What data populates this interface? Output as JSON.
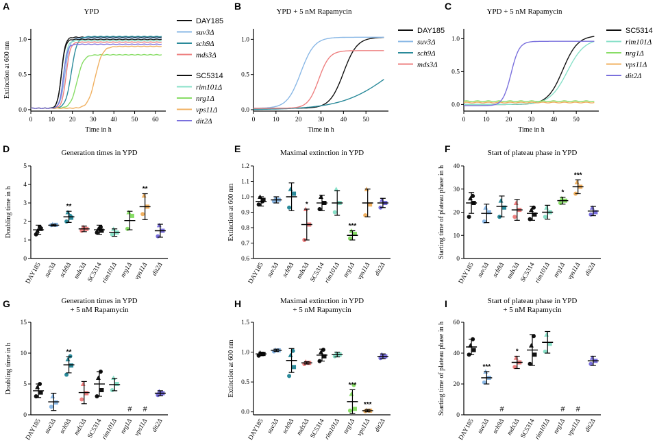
{
  "strains": [
    "DAY185",
    "suv3Δ",
    "sch9Δ",
    "mds3Δ",
    "SC5314",
    "rim101Δ",
    "nrg1Δ",
    "vps11Δ",
    "dit2Δ"
  ],
  "italic_strains": [
    "suv3Δ",
    "sch9Δ",
    "mds3Δ",
    "rim101Δ",
    "nrg1Δ",
    "vps11Δ",
    "dit2Δ"
  ],
  "colors": {
    "DAY185": "#111111",
    "suv3Δ": "#8ab8e6",
    "sch9Δ": "#2a8a9a",
    "mds3Δ": "#ee8080",
    "SC5314": "#111111",
    "rim101Δ": "#88e0c8",
    "nrg1Δ": "#88dd66",
    "vps11Δ": "#f0b060",
    "dit2Δ": "#7a70dd"
  },
  "panels": [
    "A",
    "B",
    "C",
    "D",
    "E",
    "F",
    "G",
    "H",
    "I"
  ],
  "chart_data": [
    {
      "id": "A",
      "type": "line",
      "title": "YPD",
      "xlabel": "Time in h",
      "ylabel": "Extinction at 600 nm",
      "xlim": [
        0,
        65
      ],
      "ylim": [
        -0.02,
        1.15
      ],
      "xticks": [
        0,
        10,
        20,
        30,
        40,
        50,
        60
      ],
      "yticks": [
        0.0,
        0.5,
        1.0
      ],
      "ytick_labels": [
        "0.0",
        "0.5",
        "1.0"
      ],
      "legend_groups": [
        [
          "DAY185",
          "suv3Δ",
          "sch9Δ",
          "mds3Δ"
        ],
        [
          "SC5314",
          "rim101Δ",
          "nrg1Δ",
          "vps11Δ",
          "dit2Δ"
        ]
      ],
      "series": [
        {
          "name": "DAY185",
          "lag": 11,
          "dt": 1.5,
          "plateau": 1.03
        },
        {
          "name": "suv3Δ",
          "lag": 12,
          "dt": 1.8,
          "plateau": 1.02
        },
        {
          "name": "sch9Δ",
          "lag": 14,
          "dt": 2.2,
          "plateau": 1.04
        },
        {
          "name": "mds3Δ",
          "lag": 13,
          "dt": 1.6,
          "plateau": 0.96
        },
        {
          "name": "SC5314",
          "lag": 11,
          "dt": 1.5,
          "plateau": 1.0
        },
        {
          "name": "rim101Δ",
          "lag": 12,
          "dt": 1.5,
          "plateau": 0.98
        },
        {
          "name": "nrg1Δ",
          "lag": 16,
          "dt": 2.5,
          "plateau": 0.78
        },
        {
          "name": "vps11Δ",
          "lag": 24,
          "dt": 2.8,
          "plateau": 0.9
        },
        {
          "name": "dit2Δ",
          "lag": 12,
          "dt": 1.5,
          "plateau": 0.93
        }
      ]
    },
    {
      "id": "B",
      "type": "line",
      "title": "YPD + 5 nM Rapamycin",
      "xlabel": "Time in h",
      "ylabel": "",
      "xlim": [
        0,
        60
      ],
      "ylim": [
        -0.02,
        1.15
      ],
      "xticks": [
        0,
        10,
        20,
        30,
        40,
        50
      ],
      "yticks": [
        0.0,
        0.5,
        1.0
      ],
      "ytick_labels": [
        "0.0",
        "0.5",
        "1.0"
      ],
      "legend_groups": [
        [
          "DAY185",
          "suv3Δ",
          "sch9Δ",
          "mds3Δ"
        ]
      ],
      "series": [
        {
          "name": "DAY185",
          "mid": 40,
          "k": 0.33,
          "plateau": 1.03,
          "base": 0.02
        },
        {
          "name": "suv3Δ",
          "mid": 21,
          "k": 0.33,
          "plateau": 1.03,
          "base": 0.02
        },
        {
          "name": "sch9Δ",
          "mid": 62,
          "k": 0.09,
          "plateau": 1.05,
          "base": 0.0
        },
        {
          "name": "mds3Δ",
          "mid": 29,
          "k": 0.42,
          "plateau": 0.84,
          "base": 0.02
        }
      ]
    },
    {
      "id": "C",
      "type": "line",
      "title": "YPD + 5 nM Rapamycin",
      "xlabel": "Time in h",
      "ylabel": "",
      "xlim": [
        0,
        60
      ],
      "ylim": [
        -0.1,
        1.15
      ],
      "xticks": [
        0,
        10,
        20,
        30,
        40,
        50
      ],
      "yticks": [
        0.0,
        0.5,
        1.0
      ],
      "ytick_labels": [
        "0.0",
        "0.5",
        "1.0"
      ],
      "legend_groups": [
        [
          "SC5314",
          "rim101Δ",
          "nrg1Δ",
          "vps11Δ",
          "dit2Δ"
        ]
      ],
      "series": [
        {
          "name": "SC5314",
          "mid": 44,
          "k": 0.3,
          "plateau": 1.05,
          "base": 0.0
        },
        {
          "name": "rim101Δ",
          "mid": 46,
          "k": 0.26,
          "plateau": 1.0,
          "base": 0.0
        },
        {
          "name": "nrg1Δ",
          "flat": 0.05
        },
        {
          "name": "vps11Δ",
          "flat": 0.03
        },
        {
          "name": "dit2Δ",
          "mid": 21,
          "k": 0.55,
          "plateau": 0.96,
          "base": -0.02
        }
      ]
    },
    {
      "id": "D",
      "type": "scatter",
      "title": "Generation times in YPD",
      "ylabel": "Doubling time in h",
      "ylim": [
        0,
        5
      ],
      "yticks": [
        0,
        1,
        2,
        3,
        4,
        5
      ],
      "ytick_labels": [
        "0",
        "1",
        "2",
        "3",
        "4",
        "5"
      ],
      "groups": [
        {
          "name": "DAY185",
          "values": [
            1.3,
            1.6,
            1.5,
            1.7
          ],
          "mean": 1.55,
          "sd": 0.25,
          "sig": ""
        },
        {
          "name": "suv3Δ",
          "values": [
            1.8,
            1.82,
            1.85
          ],
          "mean": 1.8,
          "sd": 0.05,
          "sig": ""
        },
        {
          "name": "sch9Δ",
          "values": [
            2.0,
            2.2,
            2.5,
            2.3
          ],
          "mean": 2.25,
          "sd": 0.3,
          "sig": "**"
        },
        {
          "name": "mds3Δ",
          "values": [
            1.5,
            1.6,
            1.7
          ],
          "mean": 1.6,
          "sd": 0.15,
          "sig": ""
        },
        {
          "name": "SC5314",
          "values": [
            1.4,
            1.5,
            1.6,
            1.7
          ],
          "mean": 1.55,
          "sd": 0.25,
          "sig": ""
        },
        {
          "name": "rim101Δ",
          "values": [
            1.3,
            1.4,
            1.6
          ],
          "mean": 1.4,
          "sd": 0.2,
          "sig": ""
        },
        {
          "name": "nrg1Δ",
          "values": [
            1.6,
            2.3,
            2.5
          ],
          "mean": 2.05,
          "sd": 0.5,
          "sig": ""
        },
        {
          "name": "vps11Δ",
          "values": [
            2.4,
            2.8,
            3.4
          ],
          "mean": 2.8,
          "sd": 0.7,
          "sig": "**"
        },
        {
          "name": "dit2Δ",
          "values": [
            1.2,
            1.5,
            1.8
          ],
          "mean": 1.5,
          "sd": 0.35,
          "sig": ""
        }
      ]
    },
    {
      "id": "E",
      "type": "scatter",
      "title": "Maximal extinction in  YPD",
      "ylabel": "Extinction at 600 nm",
      "ylim": [
        0.6,
        1.2
      ],
      "yticks": [
        0.6,
        0.7,
        0.8,
        0.9,
        1.0,
        1.1,
        1.2
      ],
      "ytick_labels": [
        "0.6",
        "0.7",
        "0.8",
        "0.9",
        "1.0",
        "1.1",
        "1.2"
      ],
      "groups": [
        {
          "name": "DAY185",
          "values": [
            0.95,
            0.98,
            1.0,
            0.97
          ],
          "mean": 0.97,
          "sd": 0.03,
          "sig": ""
        },
        {
          "name": "suv3Δ",
          "values": [
            0.97,
            0.98,
            0.99
          ],
          "mean": 0.98,
          "sd": 0.02,
          "sig": ""
        },
        {
          "name": "sch9Δ",
          "values": [
            0.93,
            1.02,
            1.05
          ],
          "mean": 1.0,
          "sd": 0.09,
          "sig": ""
        },
        {
          "name": "mds3Δ",
          "values": [
            0.72,
            0.82,
            0.92
          ],
          "mean": 0.82,
          "sd": 0.1,
          "sig": "*"
        },
        {
          "name": "SC5314",
          "values": [
            0.92,
            0.96,
            1.0
          ],
          "mean": 0.96,
          "sd": 0.05,
          "sig": ""
        },
        {
          "name": "rim101Δ",
          "values": [
            0.9,
            0.96,
            1.05
          ],
          "mean": 0.96,
          "sd": 0.08,
          "sig": ""
        },
        {
          "name": "nrg1Δ",
          "values": [
            0.73,
            0.76,
            0.78
          ],
          "mean": 0.75,
          "sd": 0.03,
          "sig": "***"
        },
        {
          "name": "vps11Δ",
          "values": [
            0.88,
            0.95,
            1.05
          ],
          "mean": 0.96,
          "sd": 0.09,
          "sig": ""
        },
        {
          "name": "dit2Δ",
          "values": [
            0.93,
            0.96,
            0.98
          ],
          "mean": 0.96,
          "sd": 0.03,
          "sig": ""
        }
      ]
    },
    {
      "id": "F",
      "type": "scatter",
      "title": "Start of plateau phase in YPD",
      "ylabel": "Starting time of plateau phase in h",
      "ylim": [
        0,
        40
      ],
      "yticks": [
        0,
        10,
        20,
        30,
        40
      ],
      "ytick_labels": [
        "0",
        "10",
        "20",
        "30",
        "40"
      ],
      "groups": [
        {
          "name": "DAY185",
          "values": [
            18,
            24,
            26,
            27
          ],
          "mean": 24,
          "sd": 4.5,
          "sig": ""
        },
        {
          "name": "suv3Δ",
          "values": [
            16,
            20,
            22
          ],
          "mean": 19.5,
          "sd": 4,
          "sig": ""
        },
        {
          "name": "sch9Δ",
          "values": [
            18,
            22,
            25
          ],
          "mean": 22.5,
          "sd": 4.5,
          "sig": ""
        },
        {
          "name": "mds3Δ",
          "values": [
            18,
            21,
            24
          ],
          "mean": 21,
          "sd": 4.5,
          "sig": ""
        },
        {
          "name": "SC5314",
          "values": [
            17,
            19,
            21,
            22
          ],
          "mean": 19.5,
          "sd": 3,
          "sig": ""
        },
        {
          "name": "rim101Δ",
          "values": [
            18,
            20,
            22
          ],
          "mean": 20,
          "sd": 3,
          "sig": ""
        },
        {
          "name": "nrg1Δ",
          "values": [
            24,
            25,
            26
          ],
          "mean": 25,
          "sd": 1.5,
          "sig": "*"
        },
        {
          "name": "vps11Δ",
          "values": [
            28,
            31,
            33
          ],
          "mean": 31,
          "sd": 3,
          "sig": "***"
        },
        {
          "name": "dit2Δ",
          "values": [
            19,
            20,
            22
          ],
          "mean": 20.5,
          "sd": 2,
          "sig": ""
        }
      ]
    },
    {
      "id": "G",
      "type": "scatter",
      "title": "Generation times in YPD",
      "title2": "+ 5 nM Rapamycin",
      "ylabel": "Doubling time in h",
      "ylim": [
        0,
        15
      ],
      "yticks": [
        0,
        5,
        10,
        15
      ],
      "ytick_labels": [
        "0",
        "5",
        "10",
        "15"
      ],
      "groups": [
        {
          "name": "DAY185",
          "values": [
            3.0,
            3.6,
            4.5,
            5.0
          ],
          "mean": 3.9,
          "sd": 1.1,
          "sig": ""
        },
        {
          "name": "suv3Δ",
          "values": [
            1.3,
            2.0,
            3.0
          ],
          "mean": 2.1,
          "sd": 1.4,
          "sig": ""
        },
        {
          "name": "sch9Δ",
          "values": [
            6.5,
            8.0,
            9.0,
            9.5
          ],
          "mean": 8.1,
          "sd": 1.3,
          "sig": "**"
        },
        {
          "name": "mds3Δ",
          "values": [
            2.5,
            3.5,
            5.0
          ],
          "mean": 3.6,
          "sd": 1.8,
          "sig": ""
        },
        {
          "name": "SC5314",
          "values": [
            3.0,
            4.0,
            6.0,
            7.0
          ],
          "mean": 5.0,
          "sd": 2.0,
          "sig": ""
        },
        {
          "name": "rim101Δ",
          "values": [
            4.0,
            5.0,
            6.0
          ],
          "mean": 4.9,
          "sd": 1.0,
          "sig": ""
        },
        {
          "name": "nrg1Δ",
          "values": [],
          "mean": null,
          "sd": null,
          "sig": "",
          "hash": "#"
        },
        {
          "name": "vps11Δ",
          "values": [],
          "mean": null,
          "sd": null,
          "sig": "",
          "hash": "#"
        },
        {
          "name": "dit2Δ",
          "values": [
            3.2,
            3.5,
            3.8
          ],
          "mean": 3.5,
          "sd": 0.4,
          "sig": ""
        }
      ]
    },
    {
      "id": "H",
      "type": "scatter",
      "title": "Maximal extinction in  YPD",
      "title2": "+ 5 nM Rapamycin",
      "ylabel": "Extinction at 600 nm",
      "ylim": [
        -0.05,
        1.5
      ],
      "yticks": [
        0.0,
        0.5,
        1.0,
        1.5
      ],
      "ytick_labels": [
        "0.0",
        "0.5",
        "1.0",
        "1.5"
      ],
      "groups": [
        {
          "name": "DAY185",
          "values": [
            0.94,
            0.97,
            0.99
          ],
          "mean": 0.97,
          "sd": 0.03,
          "sig": ""
        },
        {
          "name": "suv3Δ",
          "values": [
            1.01,
            1.03,
            1.04
          ],
          "mean": 1.03,
          "sd": 0.02,
          "sig": ""
        },
        {
          "name": "sch9Δ",
          "values": [
            0.6,
            0.75,
            0.95,
            1.02
          ],
          "mean": 0.86,
          "sd": 0.2,
          "sig": ""
        },
        {
          "name": "mds3Δ",
          "values": [
            0.8,
            0.82,
            0.84
          ],
          "mean": 0.82,
          "sd": 0.02,
          "sig": ""
        },
        {
          "name": "SC5314",
          "values": [
            0.85,
            0.93,
            1.0,
            1.04
          ],
          "mean": 0.95,
          "sd": 0.1,
          "sig": ""
        },
        {
          "name": "rim101Δ",
          "values": [
            0.93,
            0.96,
            0.98
          ],
          "mean": 0.96,
          "sd": 0.04,
          "sig": ""
        },
        {
          "name": "nrg1Δ",
          "values": [
            0.02,
            0.05,
            0.3,
            0.45
          ],
          "mean": 0.17,
          "sd": 0.2,
          "sig": "***"
        },
        {
          "name": "vps11Δ",
          "values": [
            0.01,
            0.02,
            0.03
          ],
          "mean": 0.02,
          "sd": 0.02,
          "sig": "***"
        },
        {
          "name": "dit2Δ",
          "values": [
            0.9,
            0.93,
            0.96
          ],
          "mean": 0.93,
          "sd": 0.04,
          "sig": ""
        }
      ]
    },
    {
      "id": "I",
      "type": "scatter",
      "title": "Start of plateau phase in YPD",
      "title2": "+ 5 nM Rapamycin",
      "ylabel": "Starting time of plateau phase in h",
      "ylim": [
        0,
        60
      ],
      "yticks": [
        0,
        20,
        40,
        60
      ],
      "ytick_labels": [
        "0",
        "20",
        "40",
        "60"
      ],
      "groups": [
        {
          "name": "DAY185",
          "values": [
            39,
            42,
            45,
            49
          ],
          "mean": 44,
          "sd": 5,
          "sig": ""
        },
        {
          "name": "suv3Δ",
          "values": [
            21,
            24,
            28
          ],
          "mean": 24,
          "sd": 4,
          "sig": "***"
        },
        {
          "name": "sch9Δ",
          "values": [],
          "mean": null,
          "sd": null,
          "sig": "",
          "hash": "#"
        },
        {
          "name": "mds3Δ",
          "values": [
            31,
            34,
            37
          ],
          "mean": 34,
          "sd": 4,
          "sig": "*"
        },
        {
          "name": "SC5314",
          "values": [
            33,
            39,
            45,
            51
          ],
          "mean": 42,
          "sd": 10,
          "sig": ""
        },
        {
          "name": "rim101Δ",
          "values": [
            41,
            46,
            52
          ],
          "mean": 47,
          "sd": 7,
          "sig": ""
        },
        {
          "name": "nrg1Δ",
          "values": [],
          "mean": null,
          "sd": null,
          "sig": "",
          "hash": "#"
        },
        {
          "name": "vps11Δ",
          "values": [],
          "mean": null,
          "sd": null,
          "sig": "",
          "hash": "#"
        },
        {
          "name": "dit2Δ",
          "values": [
            33,
            35,
            37
          ],
          "mean": 35,
          "sd": 3,
          "sig": ""
        }
      ]
    }
  ]
}
